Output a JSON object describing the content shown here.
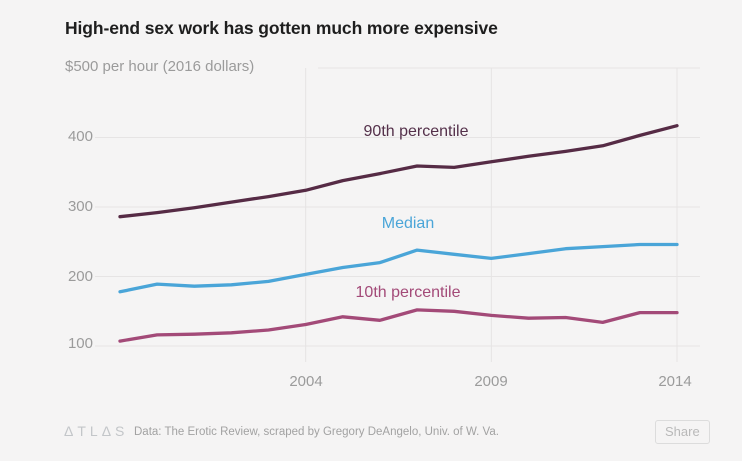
{
  "header": {
    "title": "High-end sex work has gotten much more expensive",
    "subtitle": "$500 per hour (2016 dollars)"
  },
  "chart_data": {
    "type": "line",
    "title": "High-end sex work has gotten much more expensive",
    "subtitle": "$500 per hour (2016 dollars)",
    "unit": "dollars per hour (2016 dollars)",
    "x": [
      1999,
      2000,
      2001,
      2002,
      2003,
      2004,
      2005,
      2006,
      2007,
      2008,
      2009,
      2010,
      2011,
      2012,
      2013,
      2014
    ],
    "series": [
      {
        "name": "90th percentile",
        "color": "#562b45",
        "values": [
          286,
          292,
          299,
          307,
          315,
          324,
          338,
          348,
          359,
          357,
          365,
          373,
          380,
          388,
          403,
          417
        ]
      },
      {
        "name": "Median",
        "color": "#4aa5d8",
        "values": [
          178,
          189,
          186,
          188,
          193,
          203,
          213,
          220,
          238,
          232,
          226,
          233,
          240,
          243,
          246,
          246
        ]
      },
      {
        "name": "10th percentile",
        "color": "#a34a78",
        "values": [
          107,
          116,
          117,
          119,
          123,
          131,
          142,
          137,
          152,
          150,
          144,
          140,
          141,
          134,
          148,
          148
        ]
      }
    ],
    "ylim": [
      100,
      500
    ],
    "yticks": [
      100,
      200,
      300,
      400,
      500
    ],
    "ytick_labels": [
      "400",
      "300",
      "200",
      "100"
    ],
    "xticks": [
      2004,
      2009,
      2014
    ],
    "xtick_labels": [
      "2004",
      "2009",
      "2014"
    ],
    "grid": true,
    "gridline_color": "#e6e4e4",
    "background_color": "#f5f4f4",
    "legend": "inline-labels"
  },
  "footer": {
    "atlas_logo": "ΔTLΔS",
    "credit": "Data: The Erotic Review, scraped by Gregory DeAngelo, Univ. of W. Va.",
    "share_label": "Share"
  }
}
